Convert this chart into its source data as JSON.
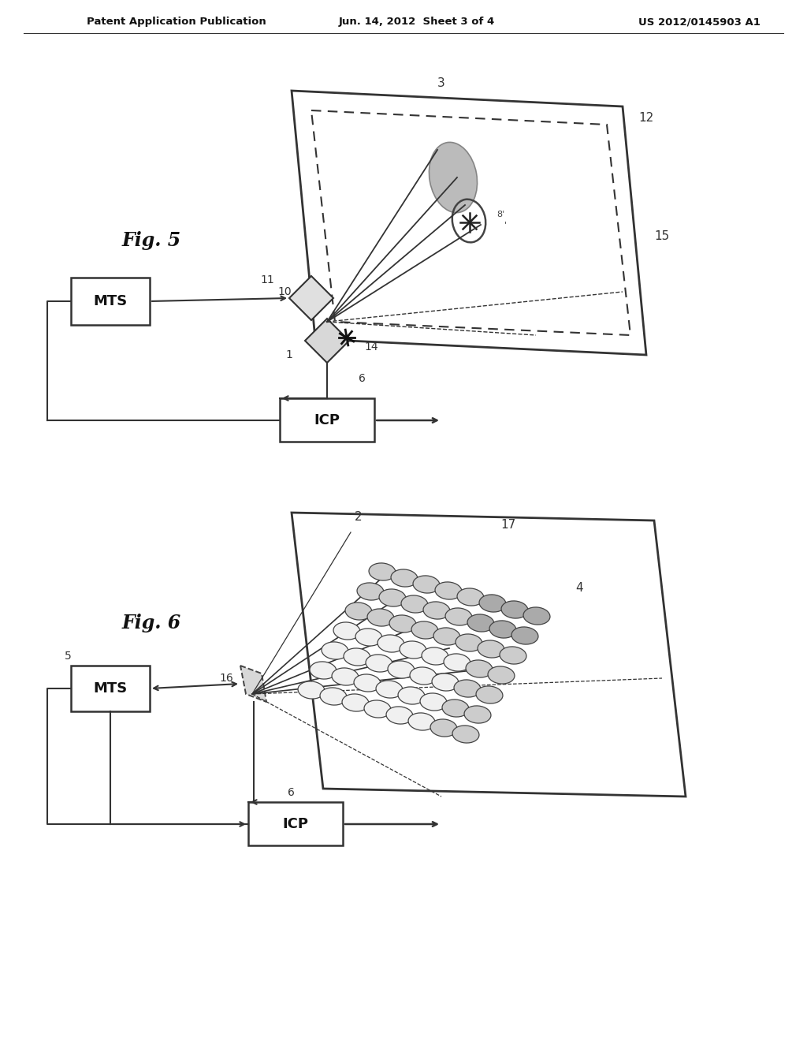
{
  "title_left": "Patent Application Publication",
  "title_mid": "Jun. 14, 2012  Sheet 3 of 4",
  "title_right": "US 2012/0145903 A1",
  "bg_color": "#ffffff",
  "fig5_label": "Fig. 5",
  "fig6_label": "Fig. 6",
  "line_color": "#333333"
}
